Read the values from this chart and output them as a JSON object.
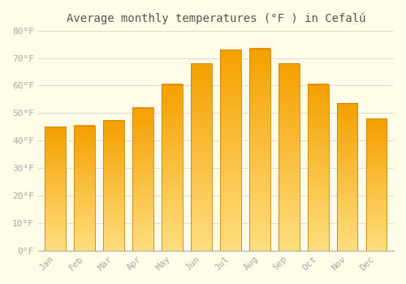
{
  "title": "Average monthly temperatures (°F ) in Cefalú",
  "months": [
    "Jan",
    "Feb",
    "Mar",
    "Apr",
    "May",
    "Jun",
    "Jul",
    "Aug",
    "Sep",
    "Oct",
    "Nov",
    "Dec"
  ],
  "values": [
    45,
    45.5,
    47.5,
    52,
    60.5,
    68,
    73,
    73.5,
    68,
    60.5,
    53.5,
    48
  ],
  "bar_color_dark": "#F5A623",
  "bar_color_light": "#FFD966",
  "bar_edge_color": "#C8820A",
  "background_color": "#FFFDE7",
  "grid_color": "#DDDDDD",
  "ylim": [
    0,
    80
  ],
  "yticks": [
    0,
    10,
    20,
    30,
    40,
    50,
    60,
    70,
    80
  ],
  "tick_label_color": "#AAAAAA",
  "title_color": "#555555",
  "font_family": "monospace",
  "bar_width": 0.72
}
